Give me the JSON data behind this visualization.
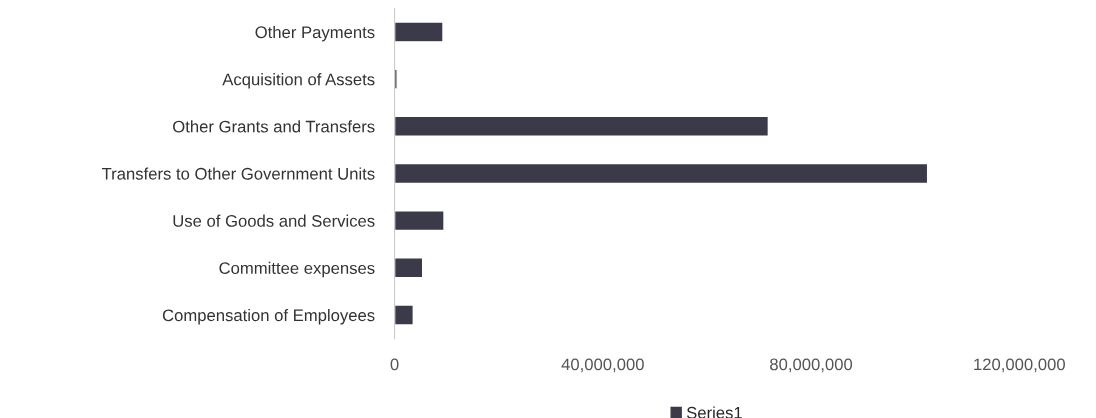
{
  "chart_data": {
    "type": "bar",
    "orientation": "horizontal",
    "categories": [
      "Other Payments",
      "Acquisition of Assets",
      "Other Grants and Transfers",
      "Transfers to Other Government Units",
      "Use of Goods and Services",
      "Committee expenses",
      "Compensation of Employees"
    ],
    "series": [
      {
        "name": "Series1",
        "color": "#3a3a48",
        "values": [
          9300000,
          500000,
          71800000,
          102400000,
          9500000,
          5400000,
          3600000
        ]
      }
    ],
    "xlim": [
      0,
      120000000
    ],
    "xticks": [
      {
        "value": 0,
        "label": "0"
      },
      {
        "value": 40000000,
        "label": "40,000,000"
      },
      {
        "value": 80000000,
        "label": "80,000,000"
      },
      {
        "value": 120000000,
        "label": "120,000,000"
      }
    ],
    "grid": false,
    "legend": "bottom"
  }
}
